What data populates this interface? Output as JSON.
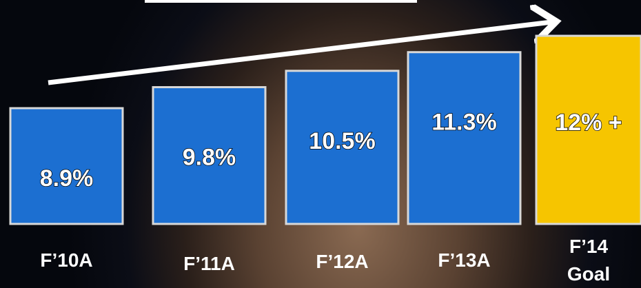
{
  "chart_data": {
    "type": "bar",
    "categories": [
      "F’10A",
      "F’11A",
      "F’12A",
      "F’13A",
      "F’14 Goal"
    ],
    "values": [
      8.9,
      9.8,
      10.5,
      11.3,
      12
    ],
    "value_labels": [
      "8.9%",
      "9.8%",
      "10.5%",
      "11.3%",
      "12% +"
    ],
    "colors": [
      "#1c6fd1",
      "#1c6fd1",
      "#1c6fd1",
      "#1c6fd1",
      "#f6c500"
    ]
  }
}
